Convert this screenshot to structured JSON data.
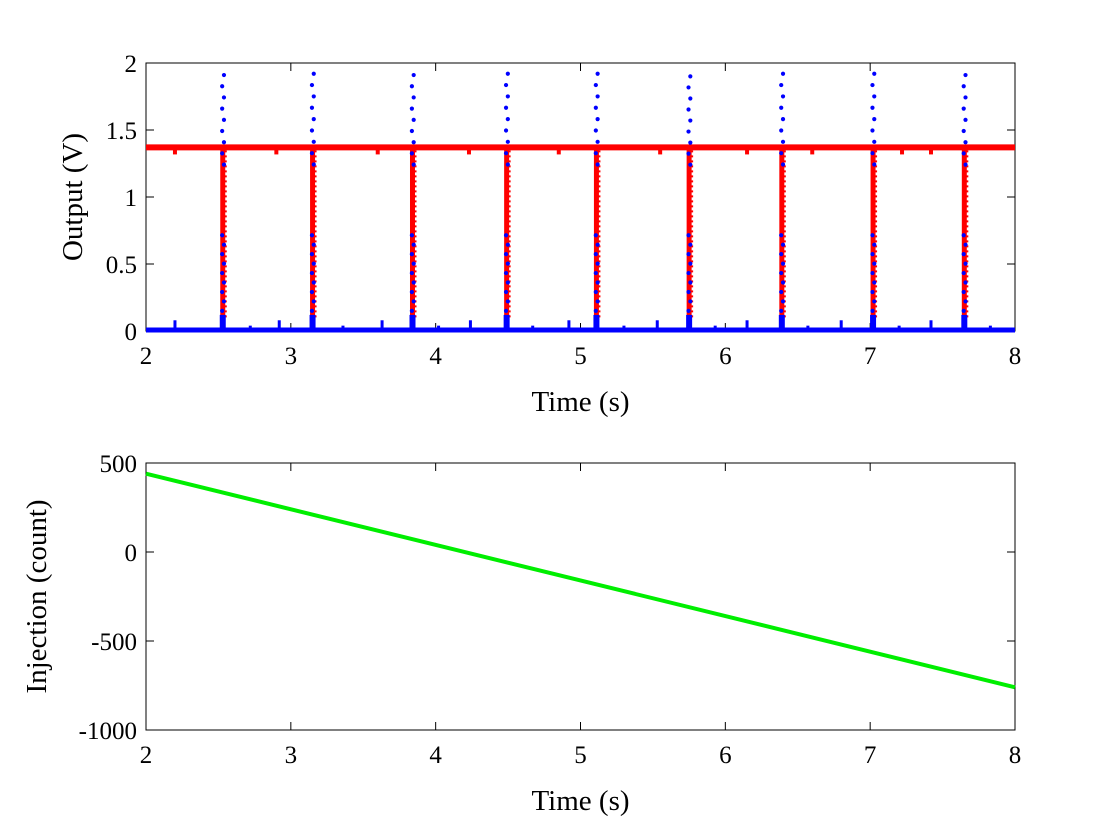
{
  "chart_data": [
    {
      "type": "scatter",
      "title": "",
      "xlabel": "Time (s)",
      "ylabel": "Output (V)",
      "xlim": [
        2,
        8
      ],
      "ylim": [
        0,
        2
      ],
      "xticks": [
        2,
        3,
        4,
        5,
        6,
        7,
        8
      ],
      "yticks": [
        0,
        0.5,
        1,
        1.5,
        2
      ],
      "ytick_labels": [
        "0",
        "0.5",
        "1",
        "1.5",
        "2"
      ],
      "grid": false,
      "legend": "none",
      "series": [
        {
          "color": "#ff0000",
          "baseline": 1.37,
          "dips": [
            {
              "t": 2.53,
              "min": 0.0
            },
            {
              "t": 3.15,
              "min": 0.0
            },
            {
              "t": 3.84,
              "min": 0.0
            },
            {
              "t": 4.49,
              "min": 0.0
            },
            {
              "t": 5.11,
              "min": 0.0
            },
            {
              "t": 5.75,
              "min": 0.0
            },
            {
              "t": 6.39,
              "min": 0.0
            },
            {
              "t": 7.02,
              "min": 0.0
            },
            {
              "t": 7.65,
              "min": 0.0
            }
          ],
          "small_dips": [
            2.2,
            2.9,
            3.6,
            4.23,
            4.85,
            5.55,
            6.15,
            6.6,
            7.22,
            7.42
          ]
        },
        {
          "color": "#0000ff",
          "baseline": 0.0,
          "spikes": [
            {
              "t": 2.53,
              "max": 1.91
            },
            {
              "t": 3.15,
              "max": 1.92
            },
            {
              "t": 3.84,
              "max": 1.91
            },
            {
              "t": 4.49,
              "max": 1.92
            },
            {
              "t": 5.11,
              "max": 1.92
            },
            {
              "t": 5.75,
              "max": 1.9
            },
            {
              "t": 6.39,
              "max": 1.92
            },
            {
              "t": 7.02,
              "max": 1.92
            },
            {
              "t": 7.65,
              "max": 1.91
            }
          ],
          "small_spikes": [
            {
              "t": 2.2,
              "max": 0.08
            },
            {
              "t": 2.72,
              "max": 0.04
            },
            {
              "t": 2.92,
              "max": 0.08
            },
            {
              "t": 3.36,
              "max": 0.04
            },
            {
              "t": 3.63,
              "max": 0.08
            },
            {
              "t": 4.02,
              "max": 0.04
            },
            {
              "t": 4.24,
              "max": 0.08
            },
            {
              "t": 4.67,
              "max": 0.04
            },
            {
              "t": 4.92,
              "max": 0.08
            },
            {
              "t": 5.3,
              "max": 0.04
            },
            {
              "t": 5.53,
              "max": 0.08
            },
            {
              "t": 5.93,
              "max": 0.04
            },
            {
              "t": 6.15,
              "max": 0.08
            },
            {
              "t": 6.57,
              "max": 0.04
            },
            {
              "t": 6.8,
              "max": 0.08
            },
            {
              "t": 7.2,
              "max": 0.04
            },
            {
              "t": 7.42,
              "max": 0.08
            },
            {
              "t": 7.83,
              "max": 0.04
            }
          ]
        }
      ]
    },
    {
      "type": "line",
      "title": "",
      "xlabel": "Time (s)",
      "ylabel": "Injection (count)",
      "xlim": [
        2,
        8
      ],
      "ylim": [
        -1000,
        500
      ],
      "xticks": [
        2,
        3,
        4,
        5,
        6,
        7,
        8
      ],
      "yticks": [
        -1000,
        -500,
        0,
        500
      ],
      "grid": false,
      "legend": "none",
      "series": [
        {
          "color": "#00ee00",
          "x": [
            2,
            8
          ],
          "values": [
            440,
            -760
          ]
        }
      ]
    }
  ]
}
